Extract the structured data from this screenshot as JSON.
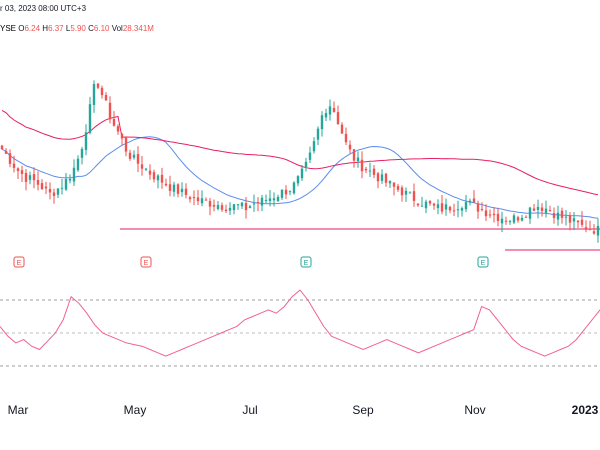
{
  "header": {
    "date_fragment": "r 03, 2023 08:00 UTC+3",
    "exchange_fragment": "YSE",
    "ohlc": [
      {
        "key": "O",
        "value": "6.24"
      },
      {
        "key": "H",
        "value": "6.37"
      },
      {
        "key": "L",
        "value": "5.90"
      },
      {
        "key": "C",
        "value": "6.10"
      },
      {
        "key": "Vol",
        "value": "28.341M"
      }
    ]
  },
  "colors": {
    "up": "#26a69a",
    "down": "#ef5350",
    "ma_fast": "#5b8def",
    "ma_slow": "#e91e63",
    "support": "#e91e63",
    "rsi": "#f06292",
    "earnings_red": "#ef5350",
    "earnings_green": "#26a69a"
  },
  "chart_data": {
    "type": "candlestick",
    "x_ticks": [
      {
        "label": "Mar",
        "bold": false
      },
      {
        "label": "May",
        "bold": false
      },
      {
        "label": "Jul",
        "bold": false
      },
      {
        "label": "Sep",
        "bold": false
      },
      {
        "label": "Nov",
        "bold": false
      },
      {
        "label": "2023",
        "bold": true
      }
    ],
    "price_path": [
      14.8,
      14.2,
      13.6,
      13.2,
      13.0,
      12.7,
      12.2,
      12.5,
      12.9,
      13.5,
      14.6,
      16.6,
      18.8,
      17.6,
      16.4,
      15.6,
      14.6,
      14.1,
      13.8,
      13.4,
      13.1,
      12.8,
      12.5,
      12.3,
      12.1,
      11.9,
      11.8,
      11.7,
      11.6,
      11.5,
      11.6,
      11.4,
      11.7,
      11.8,
      12.0,
      12.2,
      12.4,
      12.6,
      13.2,
      14.0,
      15.4,
      17.0,
      17.4,
      16.2,
      14.9,
      14.2,
      13.8,
      13.5,
      13.2,
      12.9,
      12.6,
      12.4,
      12.1,
      11.9,
      11.7,
      11.5,
      11.4,
      11.5,
      11.6,
      11.8,
      11.6,
      11.4,
      11.2,
      11.0,
      10.9,
      10.8,
      11.0,
      11.3,
      11.6,
      11.5,
      11.3,
      11.0,
      10.8,
      10.6,
      10.4,
      10.3,
      10.2
    ],
    "earnings": [
      {
        "symbol": "E",
        "kind": "red"
      },
      {
        "symbol": "E",
        "kind": "red"
      },
      {
        "symbol": "E",
        "kind": "green"
      },
      {
        "symbol": "E",
        "kind": "green"
      }
    ],
    "rsi": [
      54,
      48,
      44,
      46,
      42,
      40,
      45,
      50,
      58,
      72,
      68,
      62,
      55,
      50,
      48,
      46,
      44,
      43,
      42,
      40,
      38,
      36,
      38,
      40,
      42,
      44,
      46,
      48,
      50,
      52,
      54,
      58,
      60,
      62,
      64,
      62,
      66,
      72,
      76,
      70,
      62,
      54,
      48,
      46,
      44,
      42,
      40,
      42,
      44,
      46,
      44,
      42,
      40,
      38,
      40,
      42,
      44,
      46,
      48,
      50,
      52,
      66,
      64,
      58,
      52,
      46,
      42,
      40,
      38,
      36,
      38,
      40,
      42,
      46,
      52,
      58,
      64
    ],
    "rsi_levels": [
      70,
      30
    ]
  }
}
